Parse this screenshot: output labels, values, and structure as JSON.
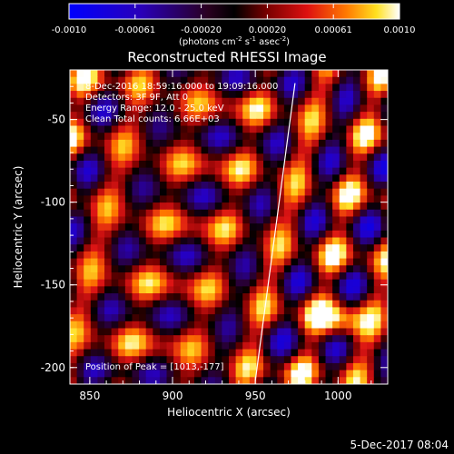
{
  "colorbar": {
    "ticks": [
      "-0.0010",
      "-0.00061",
      "-0.00020",
      "0.00020",
      "0.00061",
      "0.0010"
    ],
    "units_prefix": "(photons cm",
    "units_exp1": "-2",
    "units_mid": " s",
    "units_exp2": "-1",
    "units_mid2": " asec",
    "units_exp3": "-2",
    "units_suffix": ")"
  },
  "annotations": {
    "time_range": "8-Dec-2016 18:59:16.000 to 19:09:16.000",
    "detectors": "Detectors: 3F 9F, Att 0",
    "energy_range": "Energy Range: 12.0 - 25.0 keV",
    "clean": "Clean     Total counts: 6.66E+03",
    "peak": "Position of Peak = [1013,-177]"
  },
  "footer": {
    "timestamp": "5-Dec-2017 08:04"
  },
  "chart_data": {
    "type": "heatmap",
    "title": "Reconstructed RHESSI Image",
    "xlabel": "Heliocentric X (arcsec)",
    "ylabel": "Heliocentric Y (arcsec)",
    "xlim": [
      838,
      1030
    ],
    "ylim": [
      -210,
      -20
    ],
    "x_ticks": [
      850,
      900,
      950,
      1000
    ],
    "y_ticks": [
      -50,
      -100,
      -150,
      -200
    ],
    "colormap": "red-temperature",
    "color_range": [
      -0.001,
      0.001
    ],
    "limb_line": [
      [
        950,
        -208
      ],
      [
        974,
        -28
      ]
    ],
    "peak_position": [
      1013,
      -177
    ]
  }
}
